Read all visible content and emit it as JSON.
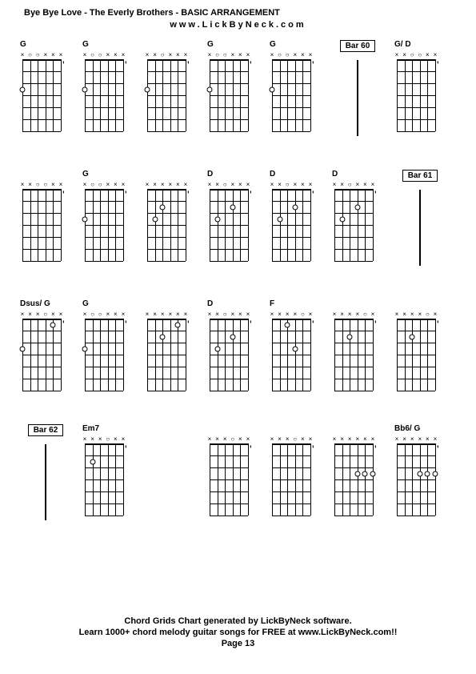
{
  "title": "Bye Bye Love - The Everly Brothers - BASIC ARRANGEMENT",
  "url": "www.LickByNeck.com",
  "footer1": "Chord Grids Chart generated by LickByNeck software.",
  "footer2": "Learn 1000+ chord melody guitar songs for FREE at www.LickByNeck.com!!",
  "page": "Page 13",
  "strings": 6,
  "frets": 6,
  "string_spacing": 9.6,
  "fret_spacing": 15,
  "dot_open": "#ffffff",
  "rows": [
    {
      "cells": [
        {
          "type": "chord",
          "label": "G",
          "markers": [
            "x",
            "o",
            "o",
            "x",
            "x",
            "x"
          ],
          "dots": [
            [
              0,
              3
            ]
          ],
          "ticks": 1
        },
        {
          "type": "chord",
          "label": "G",
          "markers": [
            "x",
            "o",
            "o",
            "x",
            "x",
            "x"
          ],
          "dots": [
            [
              0,
              3
            ]
          ],
          "ticks": 1
        },
        {
          "type": "chord",
          "label": "",
          "markers": [
            "x",
            "x",
            "o",
            "x",
            "x",
            "x"
          ],
          "dots": [
            [
              0,
              3
            ]
          ],
          "ticks": 1
        },
        {
          "type": "chord",
          "label": "G",
          "markers": [
            "x",
            "o",
            "o",
            "x",
            "x",
            "x"
          ],
          "dots": [
            [
              0,
              3
            ]
          ],
          "ticks": 1
        },
        {
          "type": "chord",
          "label": "G",
          "markers": [
            "x",
            "o",
            "o",
            "x",
            "x",
            "x"
          ],
          "dots": [
            [
              0,
              3
            ]
          ],
          "ticks": 1
        },
        {
          "type": "bar",
          "label": "Bar 60"
        },
        {
          "type": "chord",
          "label": "G/ D",
          "markers": [
            "x",
            "x",
            "o",
            "o",
            "x",
            "x"
          ],
          "dots": [],
          "ticks": 1
        }
      ]
    },
    {
      "cells": [
        {
          "type": "chord",
          "label": "",
          "markers": [
            "x",
            "x",
            "o",
            "o",
            "x",
            "x"
          ],
          "dots": [],
          "ticks": 1
        },
        {
          "type": "chord",
          "label": "G",
          "markers": [
            "x",
            "o",
            "o",
            "x",
            "x",
            "x"
          ],
          "dots": [
            [
              0,
              3
            ]
          ],
          "ticks": 1
        },
        {
          "type": "chord",
          "label": "",
          "markers": [
            "x",
            "x",
            "x",
            "x",
            "x",
            "x"
          ],
          "dots": [
            [
              2,
              2
            ],
            [
              1,
              3
            ]
          ],
          "ticks": 1
        },
        {
          "type": "chord",
          "label": "D",
          "markers": [
            "x",
            "x",
            "o",
            "x",
            "x",
            "x"
          ],
          "dots": [
            [
              3,
              2
            ],
            [
              1,
              3
            ]
          ],
          "ticks": 1
        },
        {
          "type": "chord",
          "label": "D",
          "markers": [
            "x",
            "x",
            "o",
            "x",
            "x",
            "x"
          ],
          "dots": [
            [
              3,
              2
            ],
            [
              1,
              3
            ]
          ],
          "ticks": 1
        },
        {
          "type": "chord",
          "label": "D",
          "markers": [
            "x",
            "x",
            "o",
            "x",
            "x",
            "x"
          ],
          "dots": [
            [
              3,
              2
            ],
            [
              1,
              3
            ]
          ],
          "ticks": 1
        },
        {
          "type": "bar",
          "label": "Bar 61"
        }
      ]
    },
    {
      "cells": [
        {
          "type": "chord",
          "label": "Dsus/ G",
          "markers": [
            "x",
            "x",
            "x",
            "o",
            "x",
            "x"
          ],
          "dots": [
            [
              0,
              3
            ],
            [
              4,
              1
            ]
          ],
          "ticks": 1
        },
        {
          "type": "chord",
          "label": "G",
          "markers": [
            "x",
            "o",
            "o",
            "x",
            "x",
            "x"
          ],
          "dots": [
            [
              0,
              3
            ]
          ],
          "ticks": 1
        },
        {
          "type": "chord",
          "label": "",
          "markers": [
            "x",
            "x",
            "x",
            "x",
            "x",
            "x"
          ],
          "dots": [
            [
              2,
              2
            ],
            [
              4,
              1
            ]
          ],
          "ticks": 1
        },
        {
          "type": "chord",
          "label": "D",
          "markers": [
            "x",
            "x",
            "o",
            "x",
            "x",
            "x"
          ],
          "dots": [
            [
              3,
              2
            ],
            [
              1,
              3
            ]
          ],
          "ticks": 1
        },
        {
          "type": "chord",
          "label": "F",
          "markers": [
            "x",
            "x",
            "x",
            "x",
            "o",
            "x"
          ],
          "dots": [
            [
              3,
              3
            ],
            [
              2,
              1
            ]
          ],
          "ticks": 1
        },
        {
          "type": "chord",
          "label": "",
          "markers": [
            "x",
            "x",
            "x",
            "x",
            "o",
            "x"
          ],
          "dots": [
            [
              2,
              2
            ]
          ],
          "ticks": 1
        },
        {
          "type": "chord",
          "label": "",
          "markers": [
            "x",
            "x",
            "x",
            "x",
            "o",
            "x"
          ],
          "dots": [
            [
              2,
              2
            ]
          ],
          "ticks": 1
        }
      ]
    },
    {
      "cells": [
        {
          "type": "bar",
          "label": "Bar 62"
        },
        {
          "type": "chord",
          "label": "Em7",
          "markers": [
            "x",
            "x",
            "x",
            "o",
            "x",
            "x"
          ],
          "dots": [
            [
              1,
              2
            ]
          ],
          "ticks": 1
        },
        {
          "type": "empty"
        },
        {
          "type": "chord",
          "label": "",
          "markers": [
            "x",
            "x",
            "x",
            "o",
            "x",
            "x"
          ],
          "dots": [],
          "ticks": 1
        },
        {
          "type": "chord",
          "label": "",
          "markers": [
            "x",
            "x",
            "x",
            "o",
            "x",
            "x"
          ],
          "dots": [],
          "ticks": 1
        },
        {
          "type": "chord",
          "label": "",
          "markers": [
            "x",
            "x",
            "x",
            "x",
            "x",
            "x"
          ],
          "dots": [
            [
              3,
              3
            ],
            [
              4,
              3
            ],
            [
              5,
              3
            ]
          ],
          "ticks": 1
        },
        {
          "type": "chord",
          "label": "Bb6/ G",
          "markers": [
            "x",
            "x",
            "x",
            "x",
            "x",
            "x"
          ],
          "dots": [
            [
              3,
              3
            ],
            [
              4,
              3
            ],
            [
              5,
              3
            ]
          ],
          "ticks": 1
        }
      ]
    }
  ]
}
